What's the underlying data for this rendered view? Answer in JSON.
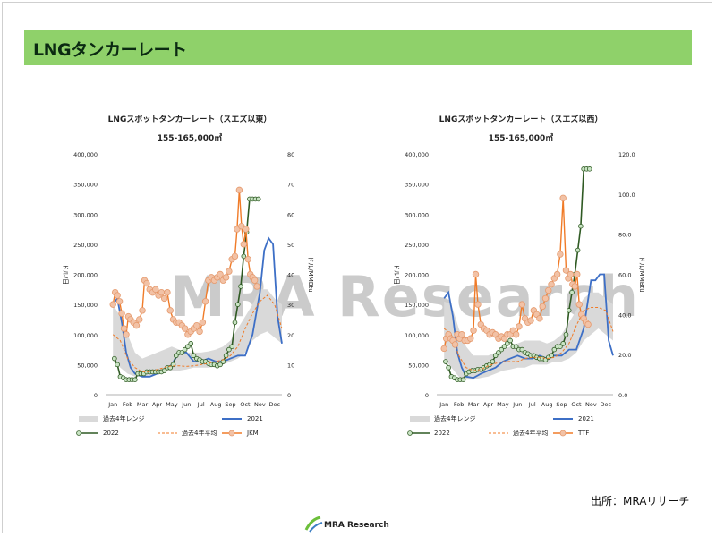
{
  "page": {
    "title": "LNGタンカーレート",
    "source_note": "出所：MRAリサーチ",
    "footer_logo": "MRA Research",
    "watermark": "MRA Research"
  },
  "colors": {
    "title_bar": "#8fd16a",
    "range_band": "#d9d9d9",
    "series_2021": "#3d6fc6",
    "series_2022": "#2f5a23",
    "series_avg": "#f07b28",
    "series_price": "#f07b28",
    "price_marker_fill": "#f2c2a6",
    "marker_2022_fill": "#c9e4c4"
  },
  "chart_data": [
    {
      "type": "line",
      "title": "LNGスポットタンカーレート（スエズ以東）",
      "subtitle": "155-165,000㎥",
      "categories": [
        "Jan",
        "Feb",
        "Mar",
        "Apr",
        "May",
        "Jun",
        "Jul",
        "Aug",
        "Sep",
        "Oct",
        "Nov",
        "Dec"
      ],
      "ylabel_right": "ドル/MMBtu",
      "ylabel_left": "ドル/日",
      "y_left": {
        "min": 0,
        "max": 400000,
        "ticks": [
          0,
          50000,
          100000,
          150000,
          200000,
          250000,
          300000,
          350000,
          400000
        ],
        "tick_labels": [
          "0",
          "50,000",
          "100,000",
          "150,000",
          "200,000",
          "250,000",
          "300,000",
          "350,000",
          "400,000"
        ]
      },
      "y_right": {
        "min": 0,
        "max": 80,
        "ticks": [
          0,
          10,
          20,
          30,
          40,
          50,
          60,
          70,
          80
        ],
        "tick_labels": [
          "0",
          "10",
          "20",
          "30",
          "40",
          "50",
          "60",
          "70",
          "80"
        ]
      },
      "legend": [
        "過去4年レンジ",
        "2021",
        "2022",
        "過去4年平均",
        "JKM"
      ],
      "series": [
        {
          "name": "過去4年レンジ",
          "axis": "left",
          "kind": "band",
          "x": [
            0,
            0.5,
            1,
            1.5,
            2,
            2.5,
            3,
            3.5,
            4,
            4.5,
            5,
            5.5,
            6,
            6.5,
            7,
            7.5,
            8,
            8.5,
            9,
            9.5,
            10,
            10.5,
            11,
            11.5
          ],
          "low": [
            60000,
            45000,
            35000,
            30000,
            30000,
            32000,
            35000,
            38000,
            40000,
            40000,
            42000,
            45000,
            45000,
            45000,
            48000,
            50000,
            55000,
            60000,
            70000,
            90000,
            100000,
            105000,
            95000,
            85000
          ],
          "high": [
            150000,
            130000,
            100000,
            70000,
            60000,
            65000,
            70000,
            75000,
            80000,
            75000,
            70000,
            70000,
            70000,
            72000,
            75000,
            80000,
            90000,
            110000,
            130000,
            150000,
            175000,
            175000,
            160000,
            150000
          ]
        },
        {
          "name": "2021",
          "axis": "left",
          "kind": "line",
          "x": [
            0,
            0.3,
            0.6,
            0.9,
            1.2,
            1.5,
            2,
            2.5,
            3,
            3.5,
            4,
            4.5,
            5,
            5.5,
            6,
            6.5,
            7,
            7.5,
            8,
            8.5,
            9,
            9.5,
            10,
            10.3,
            10.6,
            10.9,
            11.2,
            11.5
          ],
          "y": [
            150000,
            160000,
            120000,
            70000,
            45000,
            35000,
            30000,
            30000,
            35000,
            40000,
            50000,
            70000,
            70000,
            55000,
            55000,
            60000,
            55000,
            55000,
            60000,
            65000,
            65000,
            100000,
            170000,
            240000,
            260000,
            250000,
            130000,
            85000
          ]
        },
        {
          "name": "2022",
          "axis": "left",
          "kind": "line_markers",
          "x": [
            0.1,
            0.3,
            0.5,
            0.7,
            0.9,
            1.1,
            1.3,
            1.5,
            1.7,
            1.9,
            2.1,
            2.3,
            2.5,
            2.7,
            2.9,
            3.1,
            3.3,
            3.5,
            3.7,
            3.9,
            4.1,
            4.3,
            4.5,
            4.7,
            4.9,
            5.1,
            5.3,
            5.5,
            5.7,
            5.9,
            6.1,
            6.3,
            6.5,
            6.7,
            6.9,
            7.1,
            7.3,
            7.5,
            7.7,
            7.9,
            8.1,
            8.3,
            8.5,
            8.7,
            8.9,
            9.1,
            9.3,
            9.5,
            9.7,
            9.9
          ],
          "y": [
            60000,
            50000,
            30000,
            28000,
            25000,
            25000,
            25000,
            25000,
            35000,
            35000,
            35000,
            38000,
            38000,
            38000,
            38000,
            38000,
            38000,
            40000,
            45000,
            45000,
            50000,
            65000,
            70000,
            70000,
            75000,
            80000,
            85000,
            65000,
            60000,
            58000,
            55000,
            55000,
            52000,
            50000,
            50000,
            48000,
            50000,
            55000,
            65000,
            75000,
            80000,
            120000,
            150000,
            180000,
            230000,
            270000,
            325000,
            325000,
            325000,
            325000
          ]
        },
        {
          "name": "過去4年平均",
          "axis": "left",
          "kind": "dashed",
          "x": [
            0,
            0.5,
            1,
            1.5,
            2,
            2.5,
            3,
            3.5,
            4,
            4.5,
            5,
            5.5,
            6,
            6.5,
            7,
            7.5,
            8,
            8.5,
            9,
            9.5,
            10,
            10.5,
            11,
            11.5
          ],
          "y": [
            100000,
            90000,
            60000,
            45000,
            38000,
            38000,
            42000,
            45000,
            48000,
            48000,
            47000,
            48000,
            50000,
            52000,
            55000,
            58000,
            65000,
            80000,
            110000,
            135000,
            155000,
            165000,
            150000,
            110000
          ]
        },
        {
          "name": "JKM",
          "axis": "right",
          "kind": "line_markers",
          "x": [
            0,
            0.15,
            0.3,
            0.45,
            0.6,
            0.75,
            0.9,
            1.05,
            1.2,
            1.4,
            1.6,
            1.8,
            2,
            2.15,
            2.3,
            2.5,
            2.7,
            2.9,
            3.1,
            3.3,
            3.5,
            3.7,
            3.9,
            4.1,
            4.3,
            4.5,
            4.7,
            4.9,
            5.1,
            5.3,
            5.5,
            5.7,
            5.9,
            6.1,
            6.3,
            6.5,
            6.7,
            6.9,
            7.1,
            7.3,
            7.5,
            7.7,
            7.9,
            8.1,
            8.3,
            8.45,
            8.6,
            8.75,
            8.9,
            9.05,
            9.2,
            9.35,
            9.5,
            9.65,
            9.8
          ],
          "y": [
            30,
            34,
            33,
            31,
            27,
            22,
            20,
            26,
            25,
            24,
            23,
            25,
            28,
            38,
            37,
            35,
            34,
            35,
            33,
            34,
            32,
            34,
            28,
            25,
            24,
            24,
            23,
            22,
            20,
            21,
            22,
            23,
            21,
            24,
            31,
            38,
            39,
            38,
            39,
            40,
            38,
            39,
            41,
            45,
            46,
            55,
            68,
            56,
            50,
            55,
            45,
            40,
            39,
            38,
            36
          ]
        }
      ]
    },
    {
      "type": "line",
      "title": "LNGスポットタンカーレート（スエズ以西）",
      "subtitle": "155-165,000㎥",
      "categories": [
        "Jan",
        "Feb",
        "Mar",
        "Apr",
        "May",
        "Jun",
        "Jul",
        "Aug",
        "Sep",
        "Oct",
        "Nov",
        "Dec"
      ],
      "ylabel_right": "ドル/MMBtu",
      "ylabel_left": "ドル/日",
      "y_left": {
        "min": 0,
        "max": 400000,
        "ticks": [
          0,
          50000,
          100000,
          150000,
          200000,
          250000,
          300000,
          350000,
          400000
        ],
        "tick_labels": [
          "0",
          "50,000",
          "100,000",
          "150,000",
          "200,000",
          "250,000",
          "300,000",
          "350,000",
          "400,000"
        ]
      },
      "y_right": {
        "min": 0,
        "max": 120,
        "ticks": [
          0,
          20,
          40,
          60,
          80,
          100,
          120
        ],
        "tick_labels": [
          "0.0",
          "20.0",
          "40.0",
          "60.0",
          "80.0",
          "100.0",
          "120.0"
        ]
      },
      "legend": [
        "過去4年レンジ",
        "2021",
        "2022",
        "過去4年平均",
        "TTF"
      ],
      "series": [
        {
          "name": "過去4年レンジ",
          "axis": "left",
          "kind": "band",
          "x": [
            0,
            0.5,
            1,
            1.5,
            2,
            2.5,
            3,
            3.5,
            4,
            4.5,
            5,
            5.5,
            6,
            6.5,
            7,
            7.5,
            8,
            8.5,
            9,
            9.5,
            10,
            10.5,
            11,
            11.5
          ],
          "low": [
            60000,
            45000,
            30000,
            25000,
            25000,
            28000,
            30000,
            35000,
            40000,
            42000,
            45000,
            45000,
            50000,
            50000,
            50000,
            55000,
            55000,
            60000,
            70000,
            90000,
            100000,
            110000,
            100000,
            90000
          ],
          "high": [
            155000,
            150000,
            110000,
            80000,
            65000,
            65000,
            65000,
            70000,
            75000,
            80000,
            85000,
            90000,
            90000,
            90000,
            85000,
            90000,
            100000,
            120000,
            140000,
            160000,
            170000,
            170000,
            160000,
            150000
          ]
        },
        {
          "name": "2021",
          "axis": "left",
          "kind": "line",
          "x": [
            0,
            0.3,
            0.6,
            0.9,
            1.2,
            1.5,
            2,
            2.5,
            3,
            3.5,
            4,
            4.5,
            5,
            5.5,
            6,
            6.5,
            7,
            7.5,
            8,
            8.5,
            9,
            9.5,
            10,
            10.3,
            10.6,
            10.9,
            11.2,
            11.5
          ],
          "y": [
            160000,
            170000,
            130000,
            70000,
            45000,
            30000,
            28000,
            35000,
            40000,
            45000,
            55000,
            60000,
            65000,
            60000,
            60000,
            65000,
            60000,
            65000,
            65000,
            75000,
            75000,
            110000,
            190000,
            190000,
            200000,
            200000,
            90000,
            65000
          ]
        },
        {
          "name": "2022",
          "axis": "left",
          "kind": "line_markers",
          "x": [
            0.1,
            0.3,
            0.5,
            0.7,
            0.9,
            1.1,
            1.3,
            1.5,
            1.7,
            1.9,
            2.1,
            2.3,
            2.5,
            2.7,
            2.9,
            3.1,
            3.3,
            3.5,
            3.7,
            3.9,
            4.1,
            4.3,
            4.5,
            4.7,
            4.9,
            5.1,
            5.3,
            5.5,
            5.7,
            5.9,
            6.1,
            6.3,
            6.5,
            6.7,
            6.9,
            7.1,
            7.3,
            7.5,
            7.7,
            7.9,
            8.1,
            8.3,
            8.5,
            8.7,
            8.9,
            9.1,
            9.3,
            9.5,
            9.7,
            9.9
          ],
          "y": [
            55000,
            45000,
            30000,
            28000,
            25000,
            25000,
            25000,
            35000,
            38000,
            40000,
            40000,
            42000,
            42000,
            45000,
            48000,
            50000,
            55000,
            65000,
            70000,
            75000,
            80000,
            85000,
            90000,
            80000,
            80000,
            75000,
            75000,
            70000,
            68000,
            65000,
            65000,
            62000,
            60000,
            60000,
            58000,
            62000,
            65000,
            75000,
            80000,
            80000,
            85000,
            100000,
            140000,
            170000,
            200000,
            240000,
            280000,
            375000,
            375000,
            375000
          ]
        },
        {
          "name": "過去4年平均",
          "axis": "left",
          "kind": "dashed",
          "x": [
            0,
            0.5,
            1,
            1.5,
            2,
            2.5,
            3,
            3.5,
            4,
            4.5,
            5,
            5.5,
            6,
            6.5,
            7,
            7.5,
            8,
            8.5,
            9,
            9.5,
            10,
            10.5,
            11,
            11.5
          ],
          "y": [
            110000,
            100000,
            65000,
            45000,
            40000,
            42000,
            48000,
            52000,
            55000,
            55000,
            55000,
            60000,
            62000,
            62000,
            60000,
            62000,
            70000,
            85000,
            115000,
            140000,
            145000,
            145000,
            140000,
            105000
          ]
        },
        {
          "name": "TTF",
          "axis": "right",
          "kind": "line_markers",
          "x": [
            0,
            0.15,
            0.3,
            0.45,
            0.6,
            0.75,
            0.9,
            1.05,
            1.2,
            1.4,
            1.6,
            1.8,
            2,
            2.15,
            2.3,
            2.5,
            2.7,
            2.9,
            3.1,
            3.3,
            3.5,
            3.7,
            3.9,
            4.1,
            4.3,
            4.5,
            4.7,
            4.9,
            5.1,
            5.3,
            5.5,
            5.7,
            5.9,
            6.1,
            6.3,
            6.5,
            6.7,
            6.9,
            7.1,
            7.3,
            7.5,
            7.7,
            7.9,
            8.1,
            8.3,
            8.45,
            8.6,
            8.75,
            8.9,
            9.05,
            9.2,
            9.35,
            9.5,
            9.65,
            9.8
          ],
          "y": [
            23,
            28,
            30,
            28,
            27,
            25,
            30,
            28,
            30,
            27,
            27,
            28,
            32,
            60,
            45,
            35,
            33,
            32,
            30,
            31,
            30,
            28,
            29,
            28,
            30,
            30,
            32,
            30,
            34,
            45,
            38,
            36,
            37,
            42,
            40,
            38,
            44,
            48,
            52,
            55,
            58,
            60,
            70,
            98,
            62,
            58,
            60,
            55,
            54,
            60,
            45,
            40,
            38,
            36,
            35
          ]
        }
      ]
    }
  ]
}
